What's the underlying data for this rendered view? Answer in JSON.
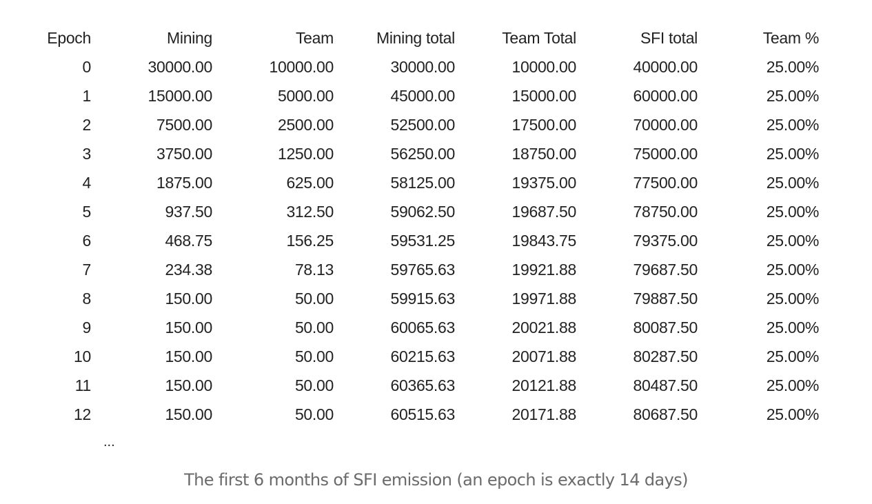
{
  "table": {
    "headers": [
      "Epoch",
      "Mining",
      "Team",
      "Mining total",
      "Team Total",
      "SFI total",
      "Team %"
    ],
    "rows": [
      [
        "0",
        "30000.00",
        "10000.00",
        "30000.00",
        "10000.00",
        "40000.00",
        "25.00%"
      ],
      [
        "1",
        "15000.00",
        "5000.00",
        "45000.00",
        "15000.00",
        "60000.00",
        "25.00%"
      ],
      [
        "2",
        "7500.00",
        "2500.00",
        "52500.00",
        "17500.00",
        "70000.00",
        "25.00%"
      ],
      [
        "3",
        "3750.00",
        "1250.00",
        "56250.00",
        "18750.00",
        "75000.00",
        "25.00%"
      ],
      [
        "4",
        "1875.00",
        "625.00",
        "58125.00",
        "19375.00",
        "77500.00",
        "25.00%"
      ],
      [
        "5",
        "937.50",
        "312.50",
        "59062.50",
        "19687.50",
        "78750.00",
        "25.00%"
      ],
      [
        "6",
        "468.75",
        "156.25",
        "59531.25",
        "19843.75",
        "79375.00",
        "25.00%"
      ],
      [
        "7",
        "234.38",
        "78.13",
        "59765.63",
        "19921.88",
        "79687.50",
        "25.00%"
      ],
      [
        "8",
        "150.00",
        "50.00",
        "59915.63",
        "19971.88",
        "79887.50",
        "25.00%"
      ],
      [
        "9",
        "150.00",
        "50.00",
        "60065.63",
        "20021.88",
        "80087.50",
        "25.00%"
      ],
      [
        "10",
        "150.00",
        "50.00",
        "60215.63",
        "20071.88",
        "80287.50",
        "25.00%"
      ],
      [
        "11",
        "150.00",
        "50.00",
        "60365.63",
        "20121.88",
        "80487.50",
        "25.00%"
      ],
      [
        "12",
        "150.00",
        "50.00",
        "60515.63",
        "20171.88",
        "80687.50",
        "25.00%"
      ]
    ],
    "continuation": "..."
  },
  "caption": "The first 6 months of SFI emission (an epoch is exactly 14 days)"
}
